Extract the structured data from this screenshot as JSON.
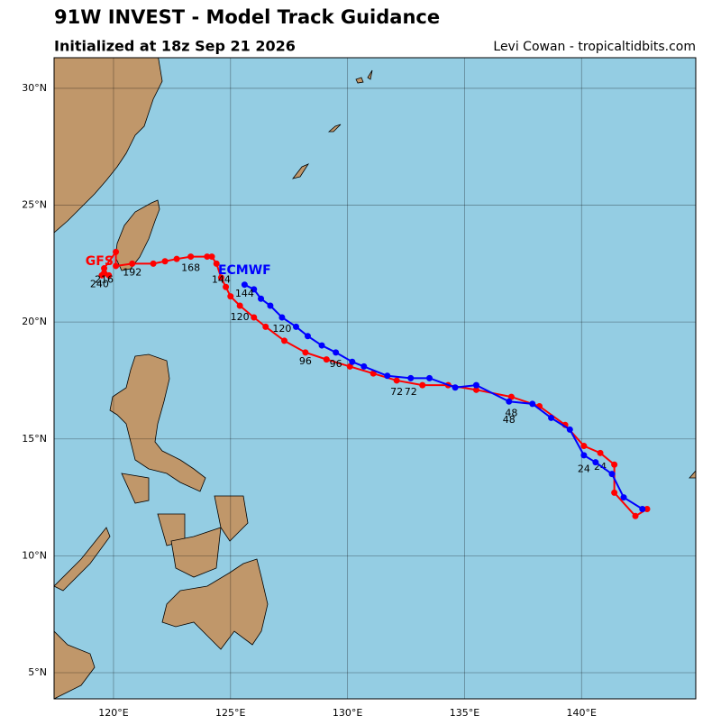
{
  "header": {
    "title": "91W INVEST - Model Track Guidance",
    "subtitle": "Initialized at 18z Sep 21 2026",
    "credit": "Levi Cowan - tropicaltidbits.com"
  },
  "map": {
    "lonlim": [
      117.46,
      144.88
    ],
    "latlim": [
      3.88,
      31.31
    ],
    "lonticks": [
      {
        "value": 120,
        "label": "120°E"
      },
      {
        "value": 125,
        "label": "125°E"
      },
      {
        "value": 130,
        "label": "130°E"
      },
      {
        "value": 135,
        "label": "135°E"
      },
      {
        "value": 140,
        "label": "140°E"
      }
    ],
    "latticks": [
      {
        "value": 5,
        "label": "5°N"
      },
      {
        "value": 10,
        "label": "10°N"
      },
      {
        "value": 15,
        "label": "15°N"
      },
      {
        "value": 20,
        "label": "20°N"
      },
      {
        "value": 25,
        "label": "25°N"
      },
      {
        "value": 30,
        "label": "30°N"
      }
    ],
    "grid": true
  },
  "tracks": [
    {
      "name": "GFS",
      "color": "#ff0000",
      "name_lon": 119.4,
      "name_lat": 22.6,
      "lon": [
        142.8,
        142.3,
        141.4,
        141.4,
        140.8,
        140.1,
        139.3,
        138.2,
        137.0,
        135.5,
        134.3,
        133.2,
        132.1,
        131.1,
        130.1,
        129.1,
        128.2,
        127.3,
        126.5,
        126.0,
        125.4,
        125.0,
        124.8,
        124.6,
        124.4,
        124.2,
        124.0,
        123.3,
        122.7,
        122.2,
        121.7,
        120.8,
        120.1,
        120.1,
        119.6,
        119.6,
        119.5,
        119.8
      ],
      "lat": [
        12.0,
        11.7,
        12.7,
        13.9,
        14.4,
        14.7,
        15.6,
        16.4,
        16.8,
        17.1,
        17.3,
        17.3,
        17.5,
        17.8,
        18.1,
        18.4,
        18.7,
        19.2,
        19.8,
        20.2,
        20.7,
        21.1,
        21.5,
        21.9,
        22.5,
        22.8,
        22.8,
        22.8,
        22.7,
        22.6,
        22.5,
        22.5,
        22.4,
        23.0,
        22.3,
        22.1,
        22.0,
        22.0
      ],
      "labels": [
        {
          "text": "24",
          "lon": 140.8,
          "lat": 13.8
        },
        {
          "text": "48",
          "lon": 136.9,
          "lat": 15.8
        },
        {
          "text": "72",
          "lon": 132.1,
          "lat": 17.0
        },
        {
          "text": "96",
          "lon": 128.2,
          "lat": 18.3
        },
        {
          "text": "120",
          "lon": 125.4,
          "lat": 20.2
        },
        {
          "text": "144",
          "lon": 124.6,
          "lat": 21.8
        },
        {
          "text": "168",
          "lon": 123.3,
          "lat": 22.3
        },
        {
          "text": "192",
          "lon": 120.8,
          "lat": 22.1
        },
        {
          "text": "216",
          "lon": 119.6,
          "lat": 21.8
        },
        {
          "text": "240",
          "lon": 119.4,
          "lat": 21.6
        }
      ]
    },
    {
      "name": "ECMWF",
      "color": "#0000ff",
      "name_lon": 125.6,
      "name_lat": 22.2,
      "lon": [
        142.6,
        141.8,
        141.3,
        140.6,
        140.1,
        139.5,
        138.7,
        137.9,
        136.9,
        135.5,
        134.6,
        133.5,
        132.7,
        131.7,
        130.7,
        130.2,
        129.5,
        128.9,
        128.3,
        127.8,
        127.2,
        126.7,
        126.3,
        126.0,
        125.6
      ],
      "lat": [
        12.0,
        12.5,
        13.5,
        14.0,
        14.3,
        15.4,
        15.9,
        16.5,
        16.6,
        17.3,
        17.2,
        17.6,
        17.6,
        17.7,
        18.1,
        18.3,
        18.7,
        19.0,
        19.4,
        19.8,
        20.2,
        20.7,
        21.0,
        21.4,
        21.6
      ],
      "labels": [
        {
          "text": "24",
          "lon": 140.1,
          "lat": 13.7
        },
        {
          "text": "48",
          "lon": 137.0,
          "lat": 16.1
        },
        {
          "text": "72",
          "lon": 132.7,
          "lat": 17.0
        },
        {
          "text": "96",
          "lon": 129.5,
          "lat": 18.2
        },
        {
          "text": "120",
          "lon": 127.2,
          "lat": 19.7
        },
        {
          "text": "144",
          "lon": 125.6,
          "lat": 21.2
        }
      ]
    }
  ]
}
